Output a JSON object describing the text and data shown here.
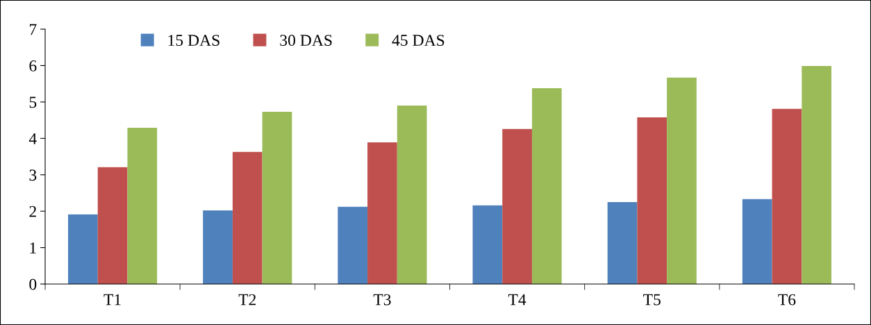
{
  "chart_data": {
    "type": "bar",
    "categories": [
      "T1",
      "T2",
      "T3",
      "T4",
      "T5",
      "T6"
    ],
    "series": [
      {
        "name": "15 DAS",
        "color": "#4f81bd",
        "values": [
          1.91,
          2.02,
          2.12,
          2.16,
          2.25,
          2.33
        ]
      },
      {
        "name": "30 DAS",
        "color": "#c0504d",
        "values": [
          3.21,
          3.63,
          3.89,
          4.26,
          4.58,
          4.81
        ]
      },
      {
        "name": "45 DAS",
        "color": "#9bbb59",
        "values": [
          4.29,
          4.73,
          4.9,
          5.38,
          5.67,
          5.99
        ]
      }
    ],
    "ylim": [
      0,
      7
    ],
    "yticks": [
      0,
      1,
      2,
      3,
      4,
      5,
      6,
      7
    ],
    "grid": false,
    "legend": "top left"
  }
}
